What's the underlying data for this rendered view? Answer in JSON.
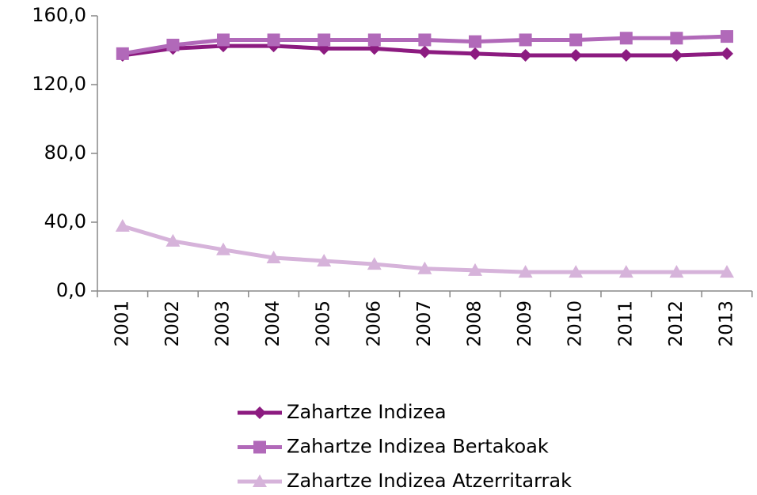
{
  "chart_data": {
    "type": "line",
    "categories": [
      "2001",
      "2002",
      "2003",
      "2004",
      "2005",
      "2006",
      "2007",
      "2008",
      "2009",
      "2010",
      "2011",
      "2012",
      "2013"
    ],
    "series": [
      {
        "name": "Zahartze Indizea",
        "color": "#8c1b80",
        "marker": "diamond",
        "values": [
          137,
          141,
          142.5,
          142.5,
          141,
          141,
          139,
          138,
          137,
          137,
          137,
          137,
          138
        ]
      },
      {
        "name": "Zahartze Indizea Bertakoak",
        "color": "#b169b9",
        "marker": "square",
        "values": [
          138,
          143,
          146,
          146,
          146,
          146,
          146,
          145,
          146,
          146,
          147,
          147,
          148
        ]
      },
      {
        "name": "Zahartze Indizea Atzerritarrak",
        "color": "#d6b3da",
        "marker": "triangle",
        "values": [
          37.7,
          29,
          24,
          19.3,
          17.5,
          15.6,
          13,
          12,
          11,
          11,
          11,
          11,
          11
        ]
      }
    ],
    "ylim": [
      0,
      160
    ],
    "yticks": [
      {
        "value": 0,
        "label": "0,0"
      },
      {
        "value": 40,
        "label": "40,0"
      },
      {
        "value": 80,
        "label": "80,0"
      },
      {
        "value": 120,
        "label": "120,0"
      },
      {
        "value": 160,
        "label": "160,0"
      }
    ],
    "grid": false,
    "legend": "bottom"
  }
}
